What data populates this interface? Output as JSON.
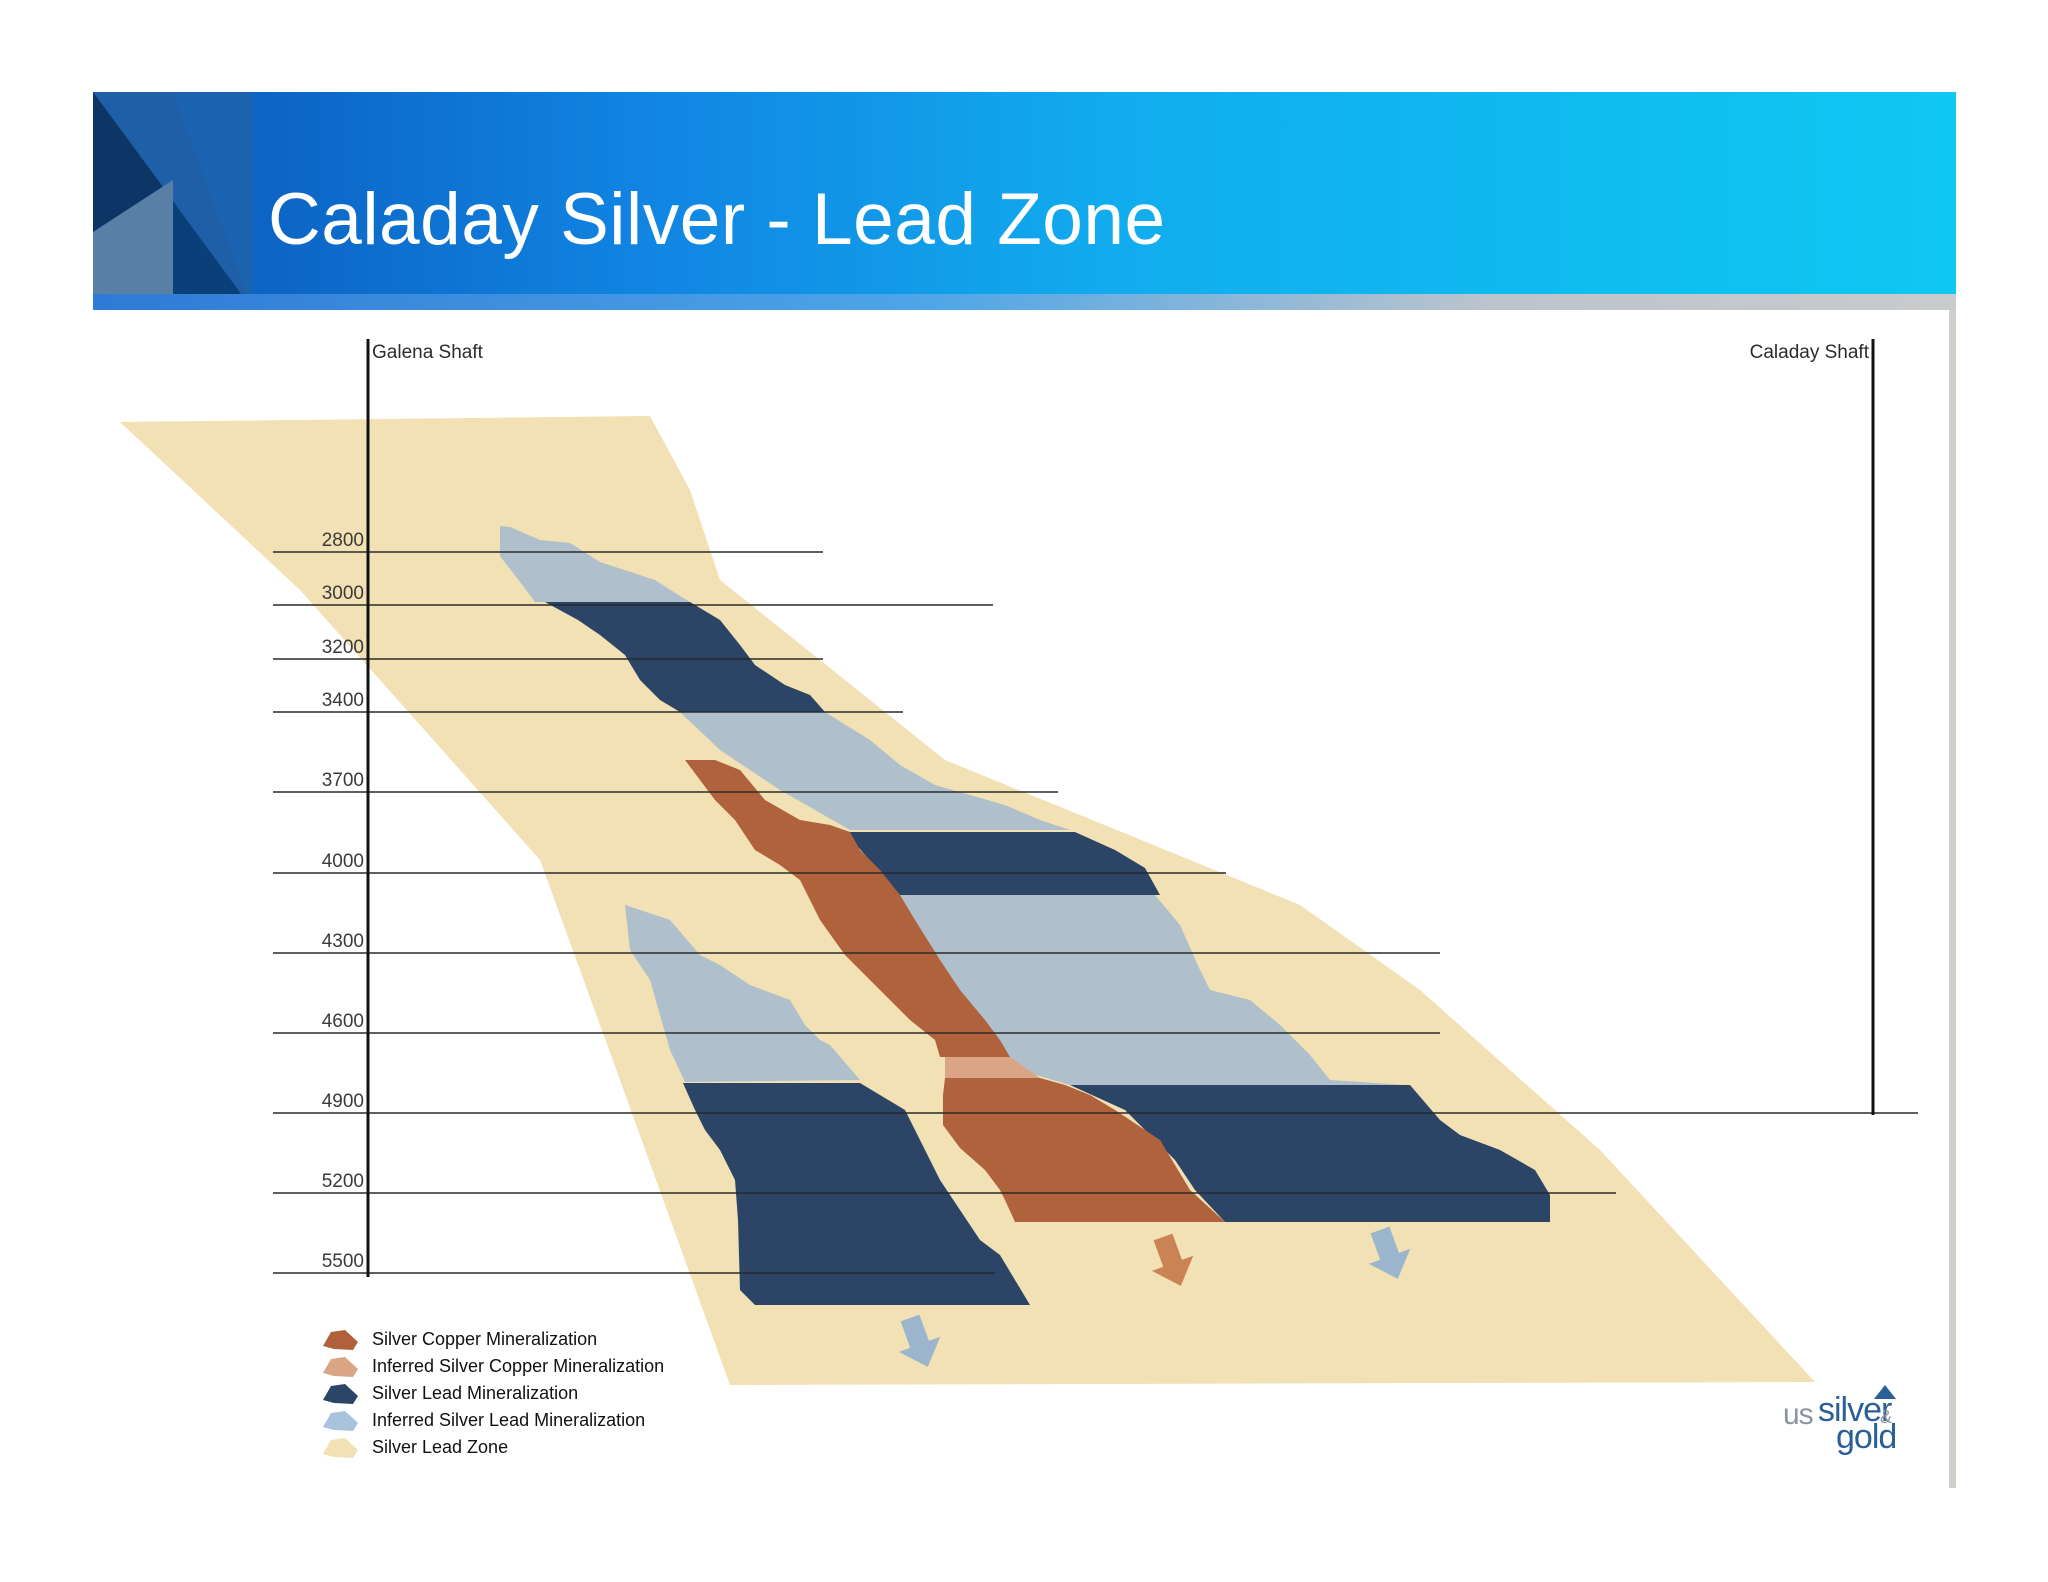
{
  "title": "Caladay Silver - Lead Zone",
  "shafts": {
    "left": "Galena Shaft",
    "right": "Caladay Shaft"
  },
  "levels": [
    "2800",
    "3000",
    "3200",
    "3400",
    "3700",
    "4000",
    "4300",
    "4600",
    "4900",
    "5200",
    "5500"
  ],
  "legend": [
    {
      "label": "Silver Copper Mineralization",
      "color": "#b0603a"
    },
    {
      "label": "Inferred Silver Copper Mineralization",
      "color": "#d9a584"
    },
    {
      "label": "Silver Lead Mineralization",
      "color": "#2c4566"
    },
    {
      "label": "Inferred Silver Lead Mineralization",
      "color": "#a9c2dd"
    },
    {
      "label": "Silver Lead Zone",
      "color": "#f1e1b4"
    }
  ],
  "colors": {
    "zone": "#f1e1b4",
    "inferred_lead": "#afc0cc",
    "lead": "#2c4566",
    "copper": "#b0623c",
    "inferred_copper": "#d9a584",
    "arrow_copper": "#c98355",
    "arrow_lead": "#9bb6cc"
  },
  "logo": {
    "us": "us",
    "silver": "silver",
    "amp": "&",
    "gold": "gold"
  }
}
